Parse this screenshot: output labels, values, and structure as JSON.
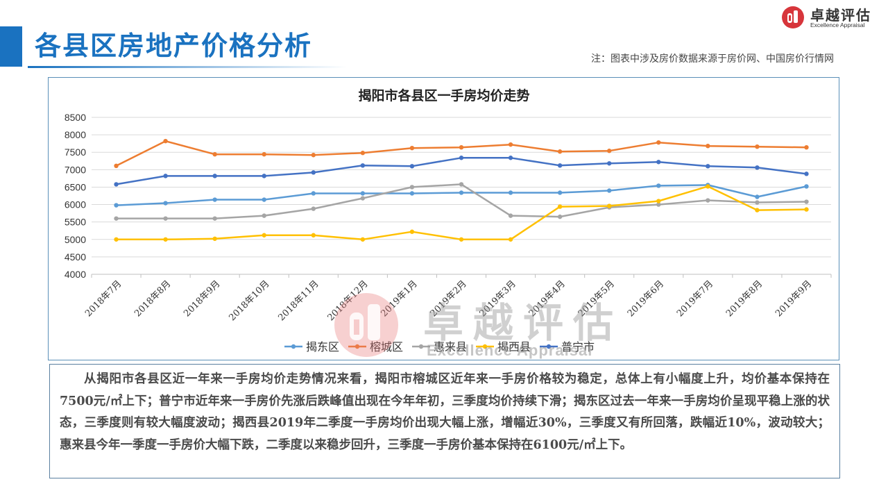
{
  "header": {
    "title": "各县区房地产价格分析",
    "source_note": "注：图表中涉及房价数据来源于房价网、中国房价行情网",
    "brand_color": "#1a72c0"
  },
  "logo": {
    "name_cn": "卓越评估",
    "name_en": "Excellence Appraisal",
    "icon": "appraisal-logo-icon",
    "color": "#d7353b"
  },
  "watermark": {
    "name_cn": "卓越评估",
    "name_en": "Excellence Appraisal"
  },
  "chart_data": {
    "type": "line",
    "title": "揭阳市各县区一手房均价走势",
    "xlabel": "",
    "ylabel": "",
    "ylim": [
      4000,
      8500
    ],
    "yticks": [
      "8500",
      "8000",
      "7500",
      "7000",
      "6500",
      "6000",
      "5500",
      "5000",
      "4500",
      "4000"
    ],
    "grid": true,
    "legend_position": "bottom",
    "categories": [
      "2018年7月",
      "2018年8月",
      "2018年9月",
      "2018年10月",
      "2018年11月",
      "2018年12月",
      "2019年1月",
      "2019年2月",
      "2019年3月",
      "2019年4月",
      "2019年5月",
      "2019年6月",
      "2019年7月",
      "2019年8月",
      "2019年9月"
    ],
    "series": [
      {
        "name": "揭东区",
        "color": "#5b9bd5",
        "values": [
          5980,
          6040,
          6140,
          6140,
          6320,
          6320,
          6320,
          6340,
          6340,
          6340,
          6400,
          6540,
          6560,
          6220,
          6520
        ]
      },
      {
        "name": "榕城区",
        "color": "#ed7d31",
        "values": [
          7110,
          7820,
          7440,
          7440,
          7420,
          7480,
          7620,
          7640,
          7720,
          7520,
          7540,
          7780,
          7680,
          7660,
          7640
        ]
      },
      {
        "name": "惠来县",
        "color": "#a5a5a5",
        "values": [
          5600,
          5600,
          5600,
          5680,
          5880,
          6180,
          6500,
          6580,
          5680,
          5650,
          5920,
          6000,
          6120,
          6060,
          6080
        ]
      },
      {
        "name": "揭西县",
        "color": "#ffc000",
        "values": [
          5000,
          5000,
          5020,
          5120,
          5120,
          5000,
          5220,
          5000,
          5000,
          5940,
          5960,
          6100,
          6520,
          5840,
          5860
        ]
      },
      {
        "name": "普宁市",
        "color": "#4472c4",
        "values": [
          6580,
          6820,
          6820,
          6820,
          6920,
          7120,
          7100,
          7340,
          7340,
          7120,
          7180,
          7220,
          7100,
          7060,
          6880
        ]
      }
    ]
  },
  "analysis": {
    "text": "从揭阳市各县区近一年来一手房均价走势情况来看，揭阳市榕城区近年来一手房价格较为稳定，总体上有小幅度上升，均价基本保持在7500元/㎡上下；普宁市近年来一手房价先涨后跌峰值出现在今年年初，三季度均价持续下滑；揭东区过去一年来一手房均价呈现平稳上涨的状态，三季度则有较大幅度波动；揭西县2019年二季度一手房均价出现大幅上涨，增幅近30%，三季度又有所回落，跌幅近10%，波动较大；惠来县今年一季度一手房价大幅下跌，二季度以来稳步回升，三季度一手房价基本保持在6100元/㎡上下。"
  }
}
